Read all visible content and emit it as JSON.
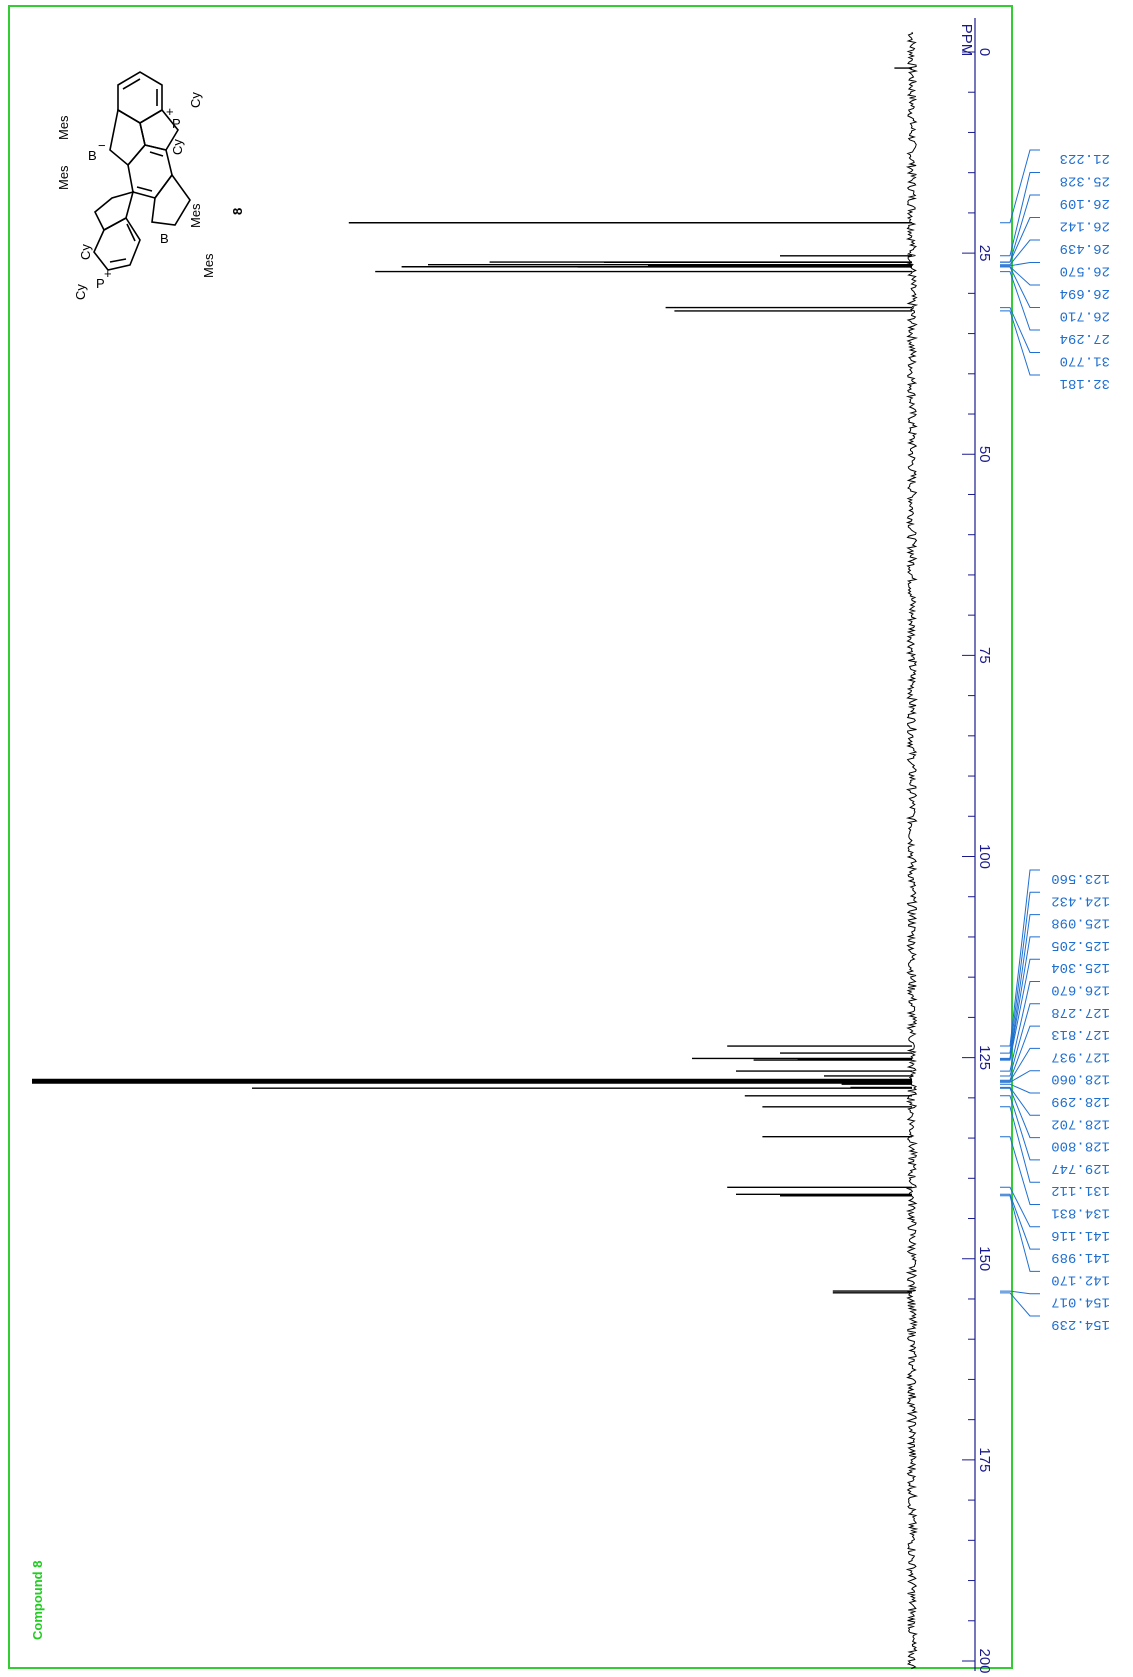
{
  "compound_label": "Compound 8",
  "structure": {
    "compound_number": "8",
    "substituents": {
      "mes": "Mes",
      "cy": "Cy"
    },
    "atoms": {
      "boron": "B",
      "phosphorus": "P",
      "plus": "+",
      "minus": "−"
    }
  },
  "colors": {
    "frame": "#33cc33",
    "axis": "#1a1a8c",
    "peak_labels": "#1f6fd1",
    "trace": "#000000"
  },
  "chart_data": {
    "type": "line",
    "title": "",
    "xlabel": "PPM",
    "xlim": [
      0,
      200
    ],
    "x_ticks": [
      0,
      25,
      50,
      75,
      100,
      125,
      150,
      175,
      200
    ],
    "grid": false,
    "orientation": "rotated 90 degrees clockwise",
    "series": [
      {
        "peaks": [
          {
            "ppm": 2.0,
            "intensity": 0.02
          },
          {
            "ppm": 21.223,
            "intensity": 0.64
          },
          {
            "ppm": 25.328,
            "intensity": 0.15
          },
          {
            "ppm": 26.109,
            "intensity": 0.48
          },
          {
            "ppm": 26.142,
            "intensity": 0.35
          },
          {
            "ppm": 26.439,
            "intensity": 0.55
          },
          {
            "ppm": 26.57,
            "intensity": 0.3
          },
          {
            "ppm": 26.694,
            "intensity": 0.58
          },
          {
            "ppm": 26.71,
            "intensity": 0.38
          },
          {
            "ppm": 27.294,
            "intensity": 0.61
          },
          {
            "ppm": 31.77,
            "intensity": 0.28
          },
          {
            "ppm": 32.181,
            "intensity": 0.27
          },
          {
            "ppm": 123.56,
            "intensity": 0.21
          },
          {
            "ppm": 124.432,
            "intensity": 0.15
          },
          {
            "ppm": 125.098,
            "intensity": 0.25
          },
          {
            "ppm": 125.205,
            "intensity": 0.13
          },
          {
            "ppm": 125.304,
            "intensity": 0.18
          },
          {
            "ppm": 126.67,
            "intensity": 0.2
          },
          {
            "ppm": 127.278,
            "intensity": 0.1
          },
          {
            "ppm": 127.813,
            "intensity": 0.12
          },
          {
            "ppm": 127.937,
            "intensity": 1.0
          },
          {
            "ppm": 128.06,
            "intensity": 0.06
          },
          {
            "ppm": 128.299,
            "intensity": 0.08
          },
          {
            "ppm": 128.702,
            "intensity": 0.07
          },
          {
            "ppm": 128.8,
            "intensity": 0.75
          },
          {
            "ppm": 129.747,
            "intensity": 0.19
          },
          {
            "ppm": 131.112,
            "intensity": 0.17
          },
          {
            "ppm": 134.831,
            "intensity": 0.17
          },
          {
            "ppm": 141.116,
            "intensity": 0.21
          },
          {
            "ppm": 141.989,
            "intensity": 0.2
          },
          {
            "ppm": 142.17,
            "intensity": 0.15
          },
          {
            "ppm": 154.017,
            "intensity": 0.09
          },
          {
            "ppm": 154.239,
            "intensity": 0.09
          }
        ]
      }
    ],
    "peak_labels": {
      "group1": [
        "21.223",
        "25.328",
        "26.109",
        "26.142",
        "26.439",
        "26.570",
        "26.694",
        "26.710",
        "27.294",
        "31.770",
        "32.181"
      ],
      "group2": [
        "123.560",
        "124.432",
        "125.098",
        "125.205",
        "125.304",
        "126.670",
        "127.278",
        "127.813",
        "127.937",
        "128.060",
        "128.299",
        "128.702",
        "128.800",
        "129.747",
        "131.112",
        "134.831",
        "141.116",
        "141.989",
        "142.170",
        "154.017",
        "154.239"
      ]
    }
  }
}
